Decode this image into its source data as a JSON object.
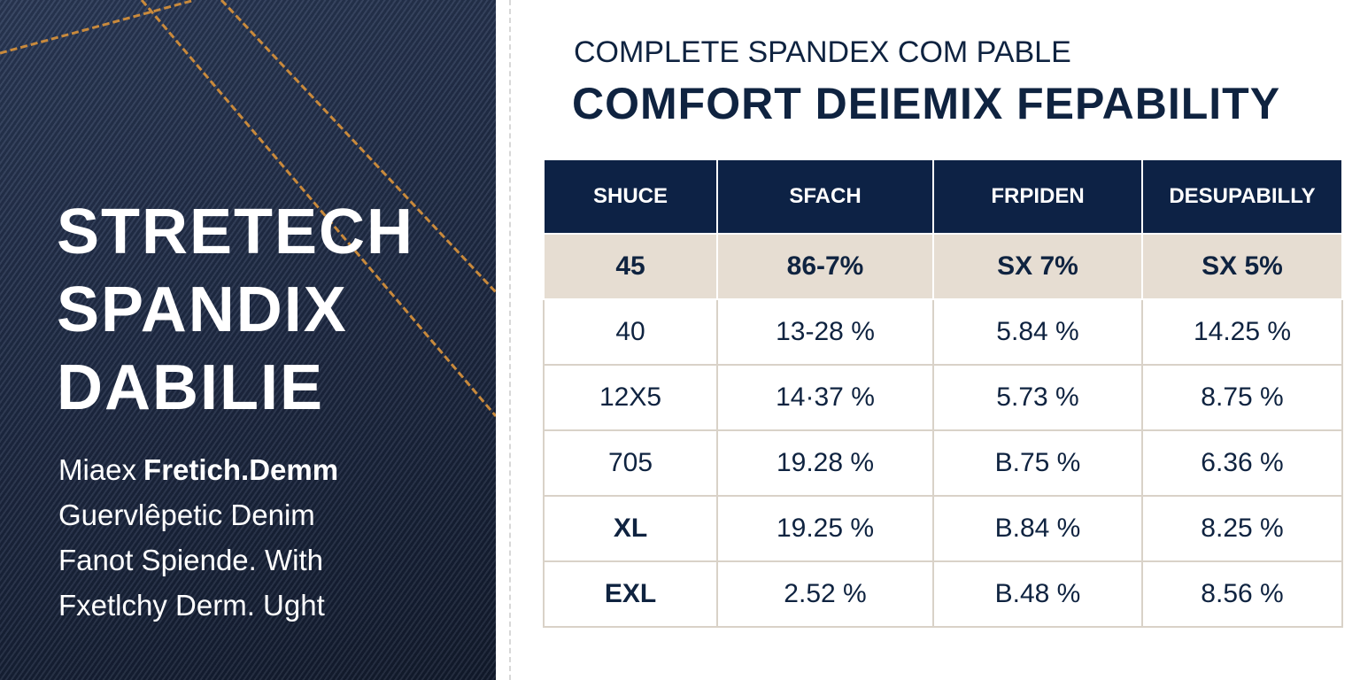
{
  "left": {
    "title": [
      "STRETECH",
      "SPANDIX",
      "DABILIE"
    ],
    "description_lead": {
      "regular": "Miaex",
      "bold": "Fretich.Demm"
    },
    "description": [
      "Guervlêpetic Denim",
      "Fanot Spiende. With",
      "Fxetlchy Derm. Ught"
    ]
  },
  "header": {
    "subtitle": "COMPLETE SPANDEX COM PABLE",
    "title": "COMFORT DEIEMIX FEPABILITY"
  },
  "table": {
    "columns": [
      "SHUCE",
      "SFACH",
      "FRPIDEN",
      "DESUPABILLY"
    ],
    "rows": [
      [
        "45",
        "86-7%",
        "SX 7%",
        "SX 5%"
      ],
      [
        "40",
        "13-28 %",
        "5.84 %",
        "14.25 %"
      ],
      [
        "12X5",
        "14·37 %",
        "5.73 %",
        "8.75 %"
      ],
      [
        "705",
        "19.28 %",
        "B.75 %",
        "6.36 %"
      ],
      [
        "XL",
        "19.25 %",
        "B.84 %",
        "8.25 %"
      ],
      [
        "EXL",
        "2.52 %",
        "B.48 %",
        "8.56 %"
      ]
    ]
  }
}
